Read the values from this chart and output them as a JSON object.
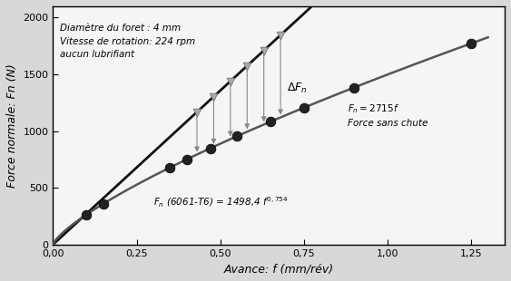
{
  "title": "",
  "xlabel": "Avance: f (mm/rév)",
  "ylabel": "Force normale: Fn (N)",
  "xlim": [
    0.0,
    1.35
  ],
  "ylim": [
    0,
    2100
  ],
  "xticks": [
    0.0,
    0.25,
    0.5,
    0.75,
    1.0,
    1.25
  ],
  "xtick_labels": [
    "0,00",
    "0,25",
    "0,50",
    "0,75",
    "1,00",
    "1,25"
  ],
  "yticks": [
    0,
    500,
    1000,
    1500,
    2000
  ],
  "data_points_x": [
    0.1,
    0.15,
    0.35,
    0.4,
    0.47,
    0.55,
    0.65,
    0.75,
    0.9,
    1.25
  ],
  "linear_slope": 2715,
  "power_coeff": 1498.4,
  "power_exp": 0.754,
  "arrow_x_positions": [
    0.43,
    0.48,
    0.53,
    0.58,
    0.63,
    0.68
  ],
  "annotation_info_text": "Diamètre du foret : 4 mm\nVitesse de rotation: 224 rpm\naucun lubrifiant",
  "annotation_linear_text": "$F_n = 2715 f$\nForce sans chute",
  "annotation_power_text": "$F_n$ (6061-T6) = 1498,4 $f^{0,754}$",
  "delta_fn_text": "ΔFₙ",
  "bg_color": "#f0f0f0",
  "point_color": "#222222",
  "linear_color": "#111111",
  "power_color": "#555555",
  "arrow_color": "#888888"
}
